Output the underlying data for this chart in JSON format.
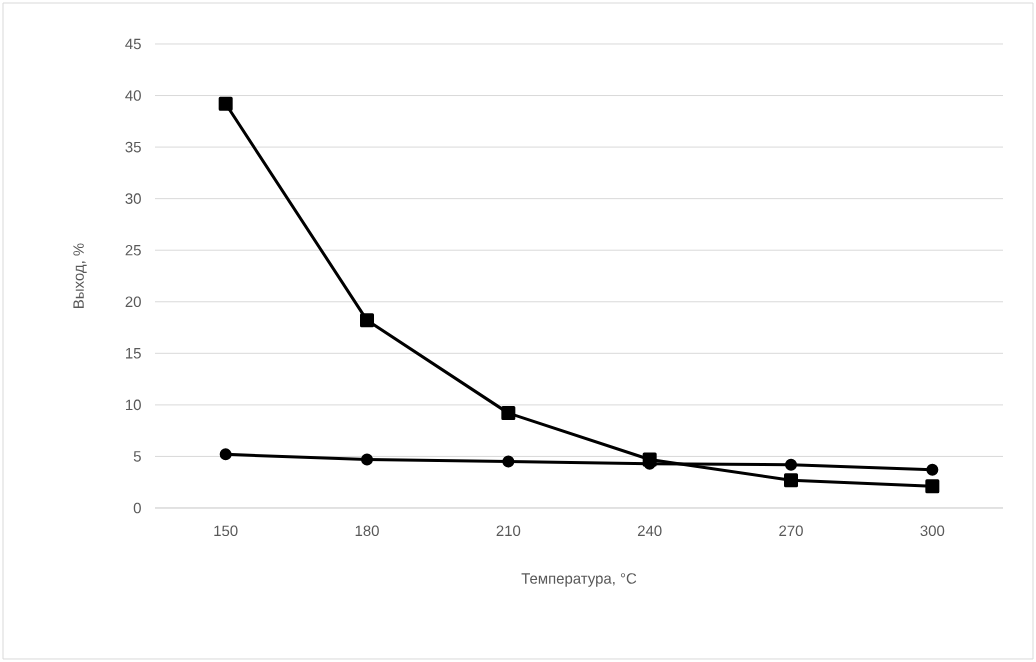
{
  "chart_data": {
    "type": "line",
    "xlabel": "Температура, °C",
    "ylabel": "Выход, %",
    "categories": [
      "150",
      "180",
      "210",
      "240",
      "270",
      "300"
    ],
    "series": [
      {
        "color": "#000000",
        "marker": "square",
        "values": [
          39.2,
          18.2,
          9.2,
          4.7,
          2.7,
          2.1
        ]
      },
      {
        "color": "#000000",
        "marker": "circle",
        "values": [
          5.2,
          4.7,
          4.5,
          4.3,
          4.2,
          3.7
        ]
      }
    ],
    "ylim": [
      0,
      45
    ],
    "yticks": [
      0,
      5,
      10,
      15,
      20,
      25,
      30,
      35,
      40,
      45
    ],
    "grid": "y"
  }
}
